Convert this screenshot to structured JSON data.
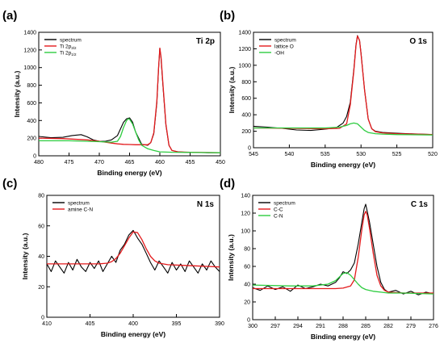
{
  "chart_data": [
    {
      "type": "line",
      "panel_label": "(a)",
      "tag": "Ti 2p",
      "xlabel": "Binding energy (eV)",
      "ylabel": "Intensity (a.u.)",
      "xlim": [
        480,
        450
      ],
      "ylim": [
        0,
        1400
      ],
      "xticks": [
        480,
        475,
        470,
        465,
        460,
        455,
        450
      ],
      "yticks": [
        0,
        200,
        400,
        600,
        800,
        1000,
        1200,
        1400
      ],
      "legend_position": "top-left",
      "series": [
        {
          "name": "spectrum",
          "color": "#000000",
          "x": [
            480,
            478,
            476,
            474.5,
            473,
            472,
            471,
            470,
            469,
            468,
            467,
            466,
            465.5,
            465,
            464.5,
            464,
            463,
            462,
            461.5,
            461,
            460.5,
            460.2,
            460,
            459.8,
            459.5,
            459,
            458.5,
            458,
            457,
            456,
            454,
            452,
            450
          ],
          "y": [
            220,
            205,
            210,
            230,
            240,
            215,
            180,
            165,
            165,
            180,
            230,
            380,
            420,
            430,
            380,
            270,
            130,
            120,
            150,
            250,
            600,
            1000,
            1220,
            1100,
            800,
            350,
            120,
            60,
            45,
            40,
            38,
            35,
            35
          ]
        },
        {
          "name_main": "Ti 2p",
          "name_sub": "3/2",
          "color": "#e31a1c",
          "x": [
            480,
            476,
            472,
            470,
            468,
            467,
            466,
            465,
            464,
            462,
            461.5,
            461,
            460.5,
            460.2,
            460,
            459.8,
            459.5,
            459,
            458.5,
            458,
            457,
            455,
            450
          ],
          "y": [
            200,
            195,
            180,
            165,
            145,
            135,
            130,
            128,
            125,
            125,
            150,
            260,
            620,
            1010,
            1220,
            1120,
            820,
            360,
            120,
            60,
            45,
            40,
            35
          ]
        },
        {
          "name_main": "Ti 2p",
          "name_sub": "1/2",
          "color": "#2ecc40",
          "x": [
            480,
            475,
            472,
            470,
            468,
            467,
            466.5,
            466,
            465.5,
            465.2,
            465,
            464.5,
            464,
            463.5,
            463,
            462,
            461,
            460,
            458,
            455,
            450
          ],
          "y": [
            170,
            170,
            165,
            160,
            155,
            165,
            220,
            320,
            400,
            420,
            415,
            360,
            270,
            180,
            120,
            80,
            60,
            45,
            40,
            38,
            35
          ]
        }
      ]
    },
    {
      "type": "line",
      "panel_label": "(b)",
      "tag": "O 1s",
      "xlabel": "Binding energy (eV)",
      "ylabel": "Intensity (a.u.)",
      "xlim": [
        545,
        520
      ],
      "ylim": [
        0,
        1400
      ],
      "xticks": [
        545,
        540,
        535,
        530,
        525,
        520
      ],
      "yticks": [
        0,
        200,
        400,
        600,
        800,
        1000,
        1200,
        1400
      ],
      "legend_position": "top-left",
      "series": [
        {
          "name": "spectrum",
          "color": "#000000",
          "x": [
            545,
            543,
            541,
            539,
            537,
            535,
            533.5,
            532.5,
            532,
            531.5,
            531,
            530.7,
            530.5,
            530.2,
            530,
            529.5,
            529,
            528.5,
            528,
            527,
            525,
            522,
            520
          ],
          "y": [
            260,
            250,
            235,
            215,
            210,
            225,
            240,
            300,
            380,
            550,
            950,
            1250,
            1360,
            1300,
            1150,
            700,
            350,
            230,
            200,
            185,
            175,
            165,
            160
          ]
        },
        {
          "name": "lattice O",
          "color": "#e31a1c",
          "x": [
            545,
            540,
            535,
            533,
            532,
            531.5,
            531,
            530.7,
            530.5,
            530.2,
            530,
            529.5,
            529,
            528.5,
            528,
            527,
            525,
            520
          ],
          "y": [
            240,
            235,
            230,
            235,
            290,
            520,
            930,
            1240,
            1355,
            1300,
            1140,
            700,
            350,
            230,
            195,
            180,
            170,
            160
          ]
        },
        {
          "name": "-OH",
          "color": "#2ecc40",
          "x": [
            545,
            540,
            535,
            533,
            532,
            531.5,
            531,
            530.5,
            530,
            529.5,
            529,
            528,
            527,
            525,
            520
          ],
          "y": [
            240,
            240,
            240,
            250,
            270,
            290,
            300,
            290,
            250,
            210,
            185,
            170,
            165,
            160,
            155
          ]
        }
      ]
    },
    {
      "type": "line",
      "panel_label": "(c)",
      "tag": "N 1s",
      "xlabel": "Binding energy (eV)",
      "ylabel": "Intensity (a.u.)",
      "xlim": [
        410,
        390
      ],
      "ylim": [
        0,
        80
      ],
      "xticks": [
        410,
        405,
        400,
        395,
        390
      ],
      "yticks": [
        0,
        20,
        40,
        60,
        80
      ],
      "legend_position": "top-left",
      "series": [
        {
          "name": "spectrum",
          "color": "#000000",
          "x": [
            410,
            409.5,
            409,
            408.5,
            408,
            407.5,
            407,
            406.5,
            406,
            405.5,
            405,
            404.5,
            404,
            403.5,
            403,
            402.5,
            402,
            401.5,
            401,
            400.5,
            400,
            399.5,
            399,
            398.5,
            398,
            397.5,
            397,
            396.5,
            396,
            395.5,
            395,
            394.5,
            394,
            393.5,
            393,
            392.5,
            392,
            391.5,
            391,
            390.5,
            390
          ],
          "y": [
            35,
            30,
            37,
            33,
            29,
            36,
            31,
            38,
            33,
            30,
            36,
            32,
            37,
            30,
            35,
            40,
            36,
            44,
            48,
            54,
            57,
            52,
            48,
            42,
            36,
            31,
            37,
            33,
            29,
            36,
            31,
            35,
            30,
            37,
            33,
            29,
            35,
            31,
            37,
            33,
            30
          ]
        },
        {
          "name": "amine C-N",
          "color": "#e31a1c",
          "x": [
            410,
            406,
            404,
            403,
            402.5,
            402,
            401.5,
            401,
            400.5,
            400,
            399.5,
            399,
            398.5,
            398,
            397.5,
            397,
            396,
            394,
            390
          ],
          "y": [
            35,
            35,
            35,
            35.5,
            36.5,
            38.5,
            42,
            47,
            52,
            56,
            55.5,
            51,
            45,
            40,
            37,
            35.5,
            34.5,
            34,
            33
          ]
        }
      ]
    },
    {
      "type": "line",
      "panel_label": "(d)",
      "tag": "C 1s",
      "xlabel": "Binding energy (eV)",
      "ylabel": "Intensity (a.u.)",
      "xlim": [
        300,
        276
      ],
      "ylim": [
        0,
        140
      ],
      "xticks": [
        300,
        297,
        294,
        291,
        288,
        285,
        282,
        279,
        276
      ],
      "yticks": [
        0,
        20,
        40,
        60,
        80,
        100,
        120,
        140
      ],
      "legend_position": "top-left",
      "series": [
        {
          "name": "spectrum",
          "color": "#000000",
          "x": [
            300,
            299,
            298,
            297,
            296,
            295,
            294,
            293,
            292,
            291,
            290,
            289,
            288.5,
            288,
            287.5,
            287,
            286.5,
            286,
            285.5,
            285.2,
            285,
            284.8,
            284.5,
            284,
            283.5,
            283,
            282.5,
            282,
            281,
            280,
            279,
            278,
            277,
            276
          ],
          "y": [
            36,
            33,
            38,
            34,
            37,
            32,
            39,
            35,
            37,
            40,
            38,
            42,
            47,
            54,
            52,
            56,
            64,
            85,
            110,
            125,
            130,
            122,
            110,
            85,
            60,
            42,
            34,
            31,
            33,
            29,
            32,
            28,
            31,
            29
          ]
        },
        {
          "name": "C-C",
          "color": "#e31a1c",
          "x": [
            300,
            292,
            289,
            288,
            287,
            286.5,
            286,
            285.5,
            285.2,
            285,
            284.8,
            284.5,
            284,
            283.5,
            283,
            282.5,
            282,
            280,
            276
          ],
          "y": [
            35,
            35,
            35,
            35.5,
            38,
            45,
            70,
            102,
            118,
            122,
            118,
            103,
            75,
            50,
            38,
            33,
            31,
            30,
            30
          ]
        },
        {
          "name": "C-N",
          "color": "#2ecc40",
          "x": [
            300,
            295,
            292,
            290,
            289,
            288.5,
            288,
            287.5,
            287,
            286.5,
            286,
            285.5,
            285,
            284.5,
            284,
            283,
            282,
            280,
            276
          ],
          "y": [
            39,
            38,
            38,
            40,
            44,
            48,
            52,
            53,
            50,
            45,
            40,
            36,
            34,
            33,
            32,
            31,
            30,
            30,
            29
          ]
        }
      ]
    }
  ]
}
